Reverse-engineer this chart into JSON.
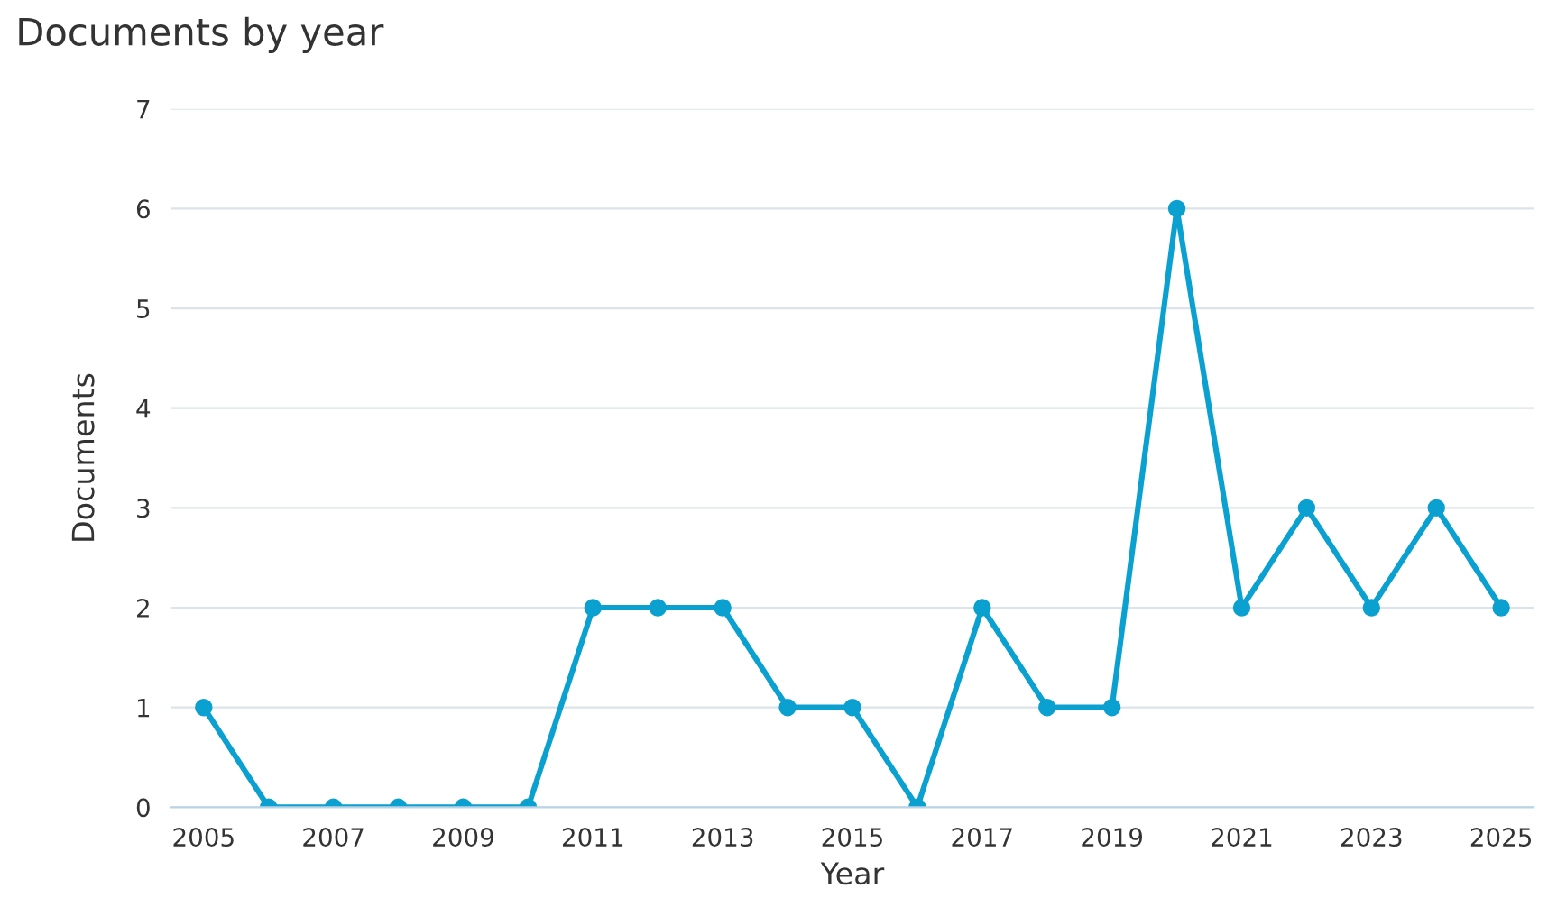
{
  "chart_data": {
    "type": "line",
    "title": "Documents by year",
    "xlabel": "Year",
    "ylabel": "Documents",
    "x": [
      2005,
      2006,
      2007,
      2008,
      2009,
      2010,
      2011,
      2012,
      2013,
      2014,
      2015,
      2016,
      2017,
      2018,
      2019,
      2020,
      2021,
      2022,
      2023,
      2024,
      2025
    ],
    "series": [
      {
        "color": "#0aa0cf",
        "values": [
          1,
          0,
          0,
          0,
          0,
          0,
          2,
          2,
          2,
          1,
          1,
          0,
          2,
          1,
          1,
          6,
          2,
          3,
          2,
          3,
          2
        ]
      }
    ],
    "xlim": [
      2004.5,
      2025.5
    ],
    "xticks": [
      2005,
      2007,
      2009,
      2011,
      2013,
      2015,
      2017,
      2019,
      2021,
      2023,
      2025
    ],
    "ylim": [
      0,
      7
    ],
    "yticks": [
      0,
      1,
      2,
      3,
      4,
      5,
      6,
      7
    ],
    "grid": "y",
    "marker": "circle",
    "line_style": "solid",
    "legend": false
  }
}
